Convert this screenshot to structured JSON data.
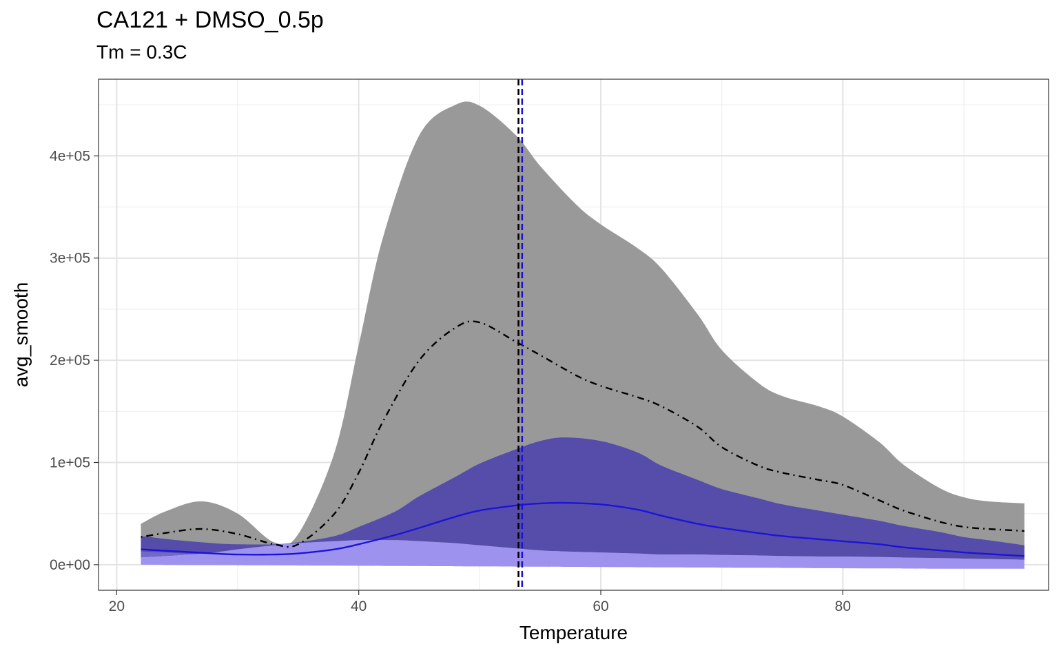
{
  "chart_data": {
    "type": "area",
    "title": "CA121 + DMSO_0.5p",
    "subtitle": "Tm = 0.3C",
    "xlabel": "Temperature",
    "ylabel": "avg_smooth",
    "xlim": [
      18.5,
      97
    ],
    "ylim": [
      -25000,
      475000
    ],
    "x_ticks": [
      20,
      40,
      60,
      80
    ],
    "x_tick_labels": [
      "20",
      "40",
      "60",
      "80"
    ],
    "y_ticks": [
      0,
      100000,
      200000,
      300000,
      400000
    ],
    "y_tick_labels": [
      "0e+00",
      "1e+05",
      "2e+05",
      "3e+05",
      "4e+05"
    ],
    "grid": true,
    "legend": "none",
    "series": [
      {
        "color": "#999999",
        "line_color": "#000000",
        "line_style": "dotdash",
        "x": [
          22,
          24,
          27,
          30,
          33,
          35,
          38,
          40,
          42,
          45,
          48,
          50,
          53,
          55,
          58,
          60,
          63,
          65,
          68,
          70,
          73,
          75,
          78,
          80,
          83,
          85,
          88,
          90,
          92,
          95
        ],
        "mean": [
          27000,
          31000,
          35000,
          30000,
          20000,
          20000,
          50000,
          90000,
          140000,
          200000,
          232000,
          237000,
          218000,
          205000,
          185000,
          175000,
          164000,
          155000,
          135000,
          115000,
          97000,
          90000,
          83000,
          78000,
          63000,
          53000,
          42000,
          37000,
          35000,
          33000
        ],
        "upper": [
          40000,
          52000,
          62000,
          50000,
          22000,
          30000,
          110000,
          215000,
          320000,
          420000,
          450000,
          449000,
          420000,
          390000,
          352000,
          333000,
          310000,
          290000,
          245000,
          210000,
          178000,
          165000,
          155000,
          145000,
          120000,
          98000,
          75000,
          66000,
          62000,
          60000
        ],
        "lower": [
          13000,
          12000,
          10000,
          9000,
          8000,
          8000,
          6000,
          5000,
          5000,
          5000,
          5000,
          5000,
          5000,
          5000,
          5000,
          5000,
          5000,
          5000,
          5000,
          5000,
          5000,
          5000,
          5000,
          5000,
          5000,
          5000,
          5000,
          5000,
          5000,
          5000
        ]
      },
      {
        "color": "#3b2fb0",
        "line_color": "#1c13d9",
        "line_style": "solid",
        "x": [
          22,
          25,
          28,
          30,
          33,
          35,
          38,
          40,
          43,
          45,
          48,
          50,
          53,
          55,
          57,
          60,
          63,
          65,
          68,
          70,
          73,
          75,
          78,
          80,
          83,
          85,
          88,
          90,
          92,
          95
        ],
        "mean": [
          15000,
          13000,
          11000,
          10000,
          10000,
          11000,
          15000,
          20000,
          29000,
          36000,
          47000,
          53000,
          58000,
          60000,
          60500,
          59000,
          54000,
          48000,
          40000,
          36000,
          31000,
          28000,
          25000,
          23000,
          20000,
          17000,
          14000,
          12000,
          10500,
          8500
        ],
        "upper": [
          28000,
          24000,
          21000,
          20000,
          20000,
          22000,
          28000,
          37000,
          52000,
          67000,
          86000,
          99000,
          113000,
          121000,
          124500,
          121000,
          110000,
          97000,
          83000,
          74000,
          65000,
          59000,
          53000,
          49000,
          43000,
          38000,
          32000,
          27000,
          24000,
          19000
        ],
        "lower": [
          7000,
          9000,
          12000,
          15000,
          19000,
          21000,
          23000,
          24000,
          24000,
          23000,
          21000,
          19000,
          16000,
          14000,
          13000,
          12000,
          11000,
          10000,
          10000,
          9500,
          9000,
          8500,
          8000,
          8000,
          7500,
          7000,
          6500,
          6000,
          5500,
          5000
        ]
      }
    ],
    "band_fill_light": "#9d93ee",
    "reference_lines": [
      {
        "axis": "x",
        "value": 53.2,
        "color": "#000000",
        "style": "dashed"
      },
      {
        "axis": "x",
        "value": 53.5,
        "color": "#1c13d9",
        "style": "dashed"
      }
    ]
  }
}
